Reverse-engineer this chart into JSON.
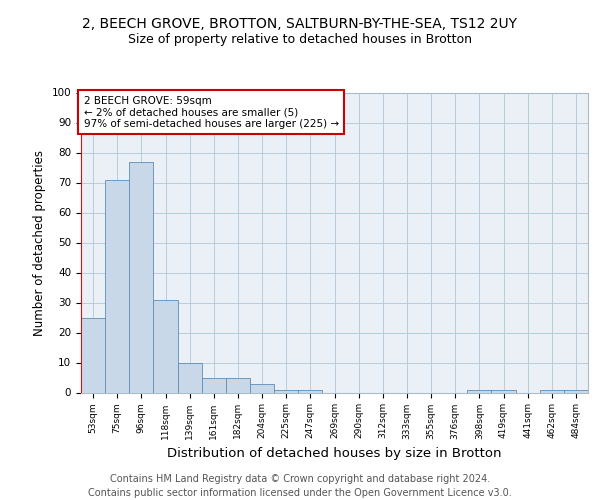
{
  "title1": "2, BEECH GROVE, BROTTON, SALTBURN-BY-THE-SEA, TS12 2UY",
  "title2": "Size of property relative to detached houses in Brotton",
  "xlabel": "Distribution of detached houses by size in Brotton",
  "ylabel": "Number of detached properties",
  "categories": [
    "53sqm",
    "75sqm",
    "96sqm",
    "118sqm",
    "139sqm",
    "161sqm",
    "182sqm",
    "204sqm",
    "225sqm",
    "247sqm",
    "269sqm",
    "290sqm",
    "312sqm",
    "333sqm",
    "355sqm",
    "376sqm",
    "398sqm",
    "419sqm",
    "441sqm",
    "462sqm",
    "484sqm"
  ],
  "values": [
    25,
    71,
    77,
    31,
    10,
    5,
    5,
    3,
    1,
    1,
    0,
    0,
    0,
    0,
    0,
    0,
    1,
    1,
    0,
    1,
    1
  ],
  "bar_color": "#c8d8e8",
  "bar_edge_color": "#5b8db8",
  "annotation_text": "2 BEECH GROVE: 59sqm\n← 2% of detached houses are smaller (5)\n97% of semi-detached houses are larger (225) →",
  "annotation_box_color": "#ffffff",
  "annotation_box_edge": "#cc0000",
  "footer": "Contains HM Land Registry data © Crown copyright and database right 2024.\nContains public sector information licensed under the Open Government Licence v3.0.",
  "ylim": [
    0,
    100
  ],
  "title1_fontsize": 10,
  "title2_fontsize": 9,
  "xlabel_fontsize": 9.5,
  "ylabel_fontsize": 8.5,
  "footer_fontsize": 7,
  "background_color": "#eaf0f6"
}
